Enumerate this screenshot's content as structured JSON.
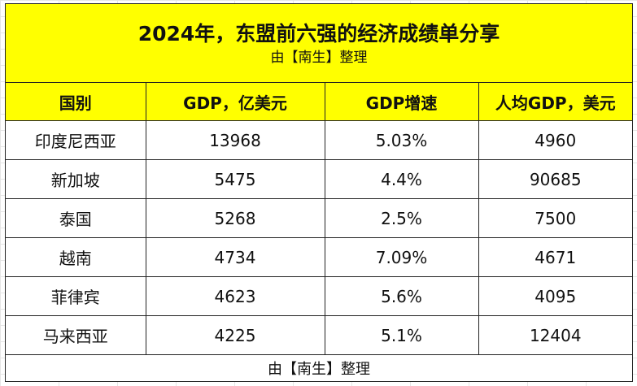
{
  "title": "2024年，东盟前六强的经济成绩单分享",
  "subtitle": "由【南生】整理",
  "headers": [
    "国别",
    "GDP，亿美元",
    "GDP增速",
    "人均GDP，美元"
  ],
  "rows": [
    [
      "印度尼西亚",
      "13968",
      "5.03%",
      "4960"
    ],
    [
      "新加坡",
      "5475",
      "4.4%",
      "90685"
    ],
    [
      "泰国",
      "5268",
      "2.5%",
      "7500"
    ],
    [
      "越南",
      "4734",
      "7.09%",
      "4671"
    ],
    [
      "菲律宾",
      "4623",
      "5.6%",
      "4095"
    ],
    [
      "马来西亚",
      "4225",
      "5.1%",
      "12404"
    ]
  ],
  "footer": "由【南生】整理"
}
